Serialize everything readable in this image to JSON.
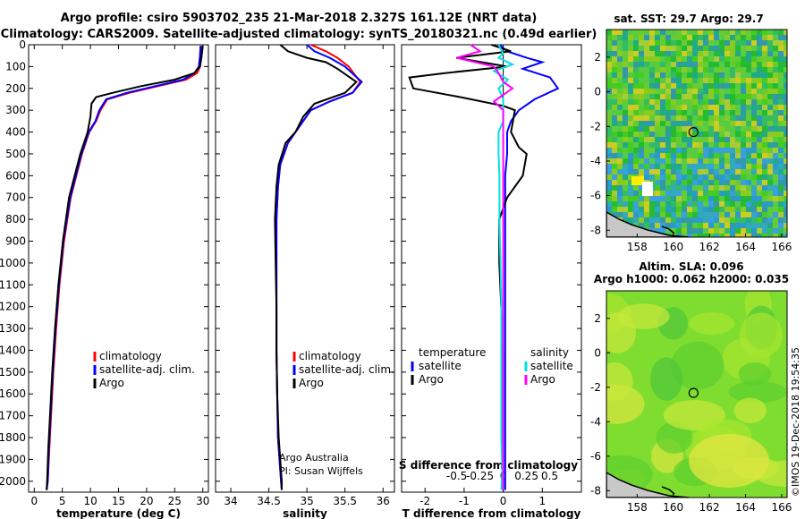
{
  "header": {
    "line1": "Argo profile: csiro 5903702_235 21-Mar-2018 2.327S 161.12E (NRT data)",
    "line2": "Climatology: CARS2009. Satellite-adjusted climatology: synTS_20180321.nc (0.49d earlier)"
  },
  "credit": {
    "org": "Argo Australia",
    "pi": "PI: Susan Wijffels"
  },
  "timestamp": "©IMOS 19-Dec-2018 19:54:35",
  "colors": {
    "climatology": "#ff0000",
    "satellite": "#0000ff",
    "argo": "#000000",
    "sat_salinity": "#00e0e0",
    "argo_salinity_diff": "#ff00ff"
  },
  "chart_data": [
    {
      "id": "temperature",
      "type": "line",
      "xlabel": "temperature (deg C)",
      "ylabel": "",
      "xlim": [
        -1,
        31
      ],
      "ylim": [
        2050,
        0
      ],
      "xticks": [
        0,
        5,
        10,
        15,
        20,
        25,
        30
      ],
      "xtick_labels": [
        "0",
        "5",
        "10",
        "15",
        "20",
        "25",
        "30"
      ],
      "yticks": [
        0,
        100,
        200,
        300,
        400,
        500,
        600,
        700,
        800,
        900,
        1000,
        1100,
        1200,
        1300,
        1400,
        1500,
        1600,
        1700,
        1800,
        1900,
        2000
      ],
      "ytick_labels": [
        "0",
        "100",
        "200",
        "300",
        "400",
        "500",
        "600",
        "700",
        "800",
        "900",
        "1000",
        "1100",
        "1200",
        "1300",
        "1400",
        "1500",
        "1600",
        "1700",
        "1800",
        "1900",
        "2000"
      ],
      "legend": [
        "climatology",
        "satellite-adj. clim.",
        "Argo"
      ],
      "legend_position": "lower-right",
      "series": [
        {
          "name": "climatology",
          "color": "#ff0000",
          "x": [
            29.8,
            29.7,
            29.5,
            29.0,
            27.0,
            22.0,
            17.0,
            13.0,
            11.8,
            11.0,
            9.8,
            8.5,
            7.5,
            6.5,
            5.3,
            4.5,
            3.9,
            3.4,
            3.0,
            2.7,
            2.4,
            2.2
          ],
          "y": [
            5,
            50,
            100,
            130,
            160,
            190,
            220,
            250,
            300,
            350,
            400,
            500,
            600,
            700,
            900,
            1100,
            1300,
            1500,
            1700,
            1850,
            2000,
            2040
          ]
        },
        {
          "name": "satellite-adj. clim.",
          "color": "#0000ff",
          "x": [
            29.6,
            29.5,
            29.3,
            28.5,
            26.5,
            21.5,
            16.5,
            12.8,
            11.6,
            10.9,
            9.7,
            8.4,
            7.4,
            6.4,
            5.2,
            4.4,
            3.8,
            3.3,
            2.9,
            2.6,
            2.4,
            2.2
          ],
          "y": [
            5,
            50,
            100,
            130,
            160,
            190,
            220,
            250,
            300,
            350,
            400,
            500,
            600,
            700,
            900,
            1100,
            1300,
            1500,
            1700,
            1850,
            2000,
            2040
          ]
        },
        {
          "name": "Argo",
          "color": "#000000",
          "x": [
            30.0,
            29.8,
            29.5,
            28.5,
            25.0,
            19.0,
            14.0,
            11.0,
            10.2,
            10.0,
            9.5,
            8.2,
            7.2,
            6.2,
            5.1,
            4.3,
            3.7,
            3.2,
            2.8,
            2.5,
            2.3,
            2.2
          ],
          "y": [
            5,
            50,
            100,
            130,
            160,
            190,
            220,
            240,
            270,
            330,
            400,
            500,
            600,
            700,
            900,
            1100,
            1300,
            1500,
            1700,
            1850,
            2000,
            2040
          ]
        }
      ]
    },
    {
      "id": "salinity",
      "type": "line",
      "xlabel": "salinity",
      "ylabel": "",
      "xlim": [
        33.8,
        36.15
      ],
      "ylim": [
        2050,
        0
      ],
      "xticks": [
        34,
        34.5,
        35,
        35.5,
        36
      ],
      "xtick_labels": [
        "34",
        "34.5",
        "35",
        "35.5",
        "36"
      ],
      "legend": [
        "climatology",
        "satellite-adj. clim.",
        "Argo"
      ],
      "legend_position": "lower-right",
      "series": [
        {
          "name": "climatology",
          "color": "#ff0000",
          "x": [
            35.05,
            35.25,
            35.4,
            35.55,
            35.7,
            35.6,
            35.3,
            35.05,
            34.95,
            34.85,
            34.75,
            34.65,
            34.62,
            34.6,
            34.6,
            34.6,
            34.6,
            34.61,
            34.62,
            34.64,
            34.66,
            34.67
          ],
          "y": [
            0,
            30,
            60,
            100,
            170,
            220,
            260,
            300,
            350,
            400,
            450,
            550,
            650,
            800,
            1000,
            1200,
            1400,
            1600,
            1800,
            1900,
            2000,
            2040
          ]
        },
        {
          "name": "satellite-adj. clim.",
          "color": "#0000ff",
          "x": [
            35.0,
            35.1,
            35.3,
            35.5,
            35.72,
            35.6,
            35.3,
            35.05,
            34.95,
            34.85,
            34.75,
            34.65,
            34.62,
            34.6,
            34.6,
            34.6,
            34.6,
            34.61,
            34.62,
            34.64,
            34.66,
            34.67
          ],
          "y": [
            0,
            30,
            60,
            100,
            170,
            220,
            260,
            300,
            350,
            400,
            450,
            550,
            650,
            800,
            1000,
            1200,
            1400,
            1600,
            1800,
            1900,
            2000,
            2040
          ]
        },
        {
          "name": "Argo",
          "color": "#000000",
          "x": [
            34.65,
            34.75,
            35.0,
            35.25,
            35.4,
            35.65,
            35.5,
            35.1,
            34.95,
            34.85,
            34.72,
            34.63,
            34.6,
            34.58,
            34.59,
            34.6,
            34.6,
            34.61,
            34.63,
            34.65,
            34.67,
            34.67
          ],
          "y": [
            0,
            30,
            60,
            80,
            110,
            170,
            220,
            270,
            330,
            400,
            450,
            550,
            650,
            800,
            1000,
            1200,
            1400,
            1600,
            1800,
            1900,
            2000,
            2040
          ]
        }
      ]
    },
    {
      "id": "differences",
      "type": "line",
      "xlabel": "T difference from climatology",
      "xlabel2": "S difference from climatology",
      "xlim": [
        -2.6,
        2.0
      ],
      "ylim": [
        2050,
        0
      ],
      "xticks": [
        -2,
        -1,
        0,
        1
      ],
      "xtick_labels": [
        "-2",
        "-1",
        "0",
        "1"
      ],
      "xticks2": [
        -0.5,
        -0.25,
        0,
        0.25,
        0.5
      ],
      "xtick2_labels": [
        "-0.5",
        "-0.25",
        "0",
        "0.25",
        "0.5"
      ],
      "legend_left": [
        "temperature",
        "satellite",
        "Argo"
      ],
      "legend_right": [
        "salinity",
        "satellite",
        "Argo"
      ],
      "series": [
        {
          "name": "temperature satellite",
          "color": "#0000ff",
          "x": [
            -0.1,
            0.1,
            0.6,
            1.0,
            0.5,
            1.2,
            1.4,
            0.8,
            0.4,
            0.2,
            0.1,
            0.1,
            0.05,
            0.05,
            0.05,
            0.05,
            0.05,
            0.05,
            0.05,
            0.05,
            0.05
          ],
          "y": [
            0,
            30,
            60,
            80,
            110,
            150,
            200,
            250,
            300,
            350,
            400,
            500,
            600,
            800,
            1000,
            1200,
            1400,
            1600,
            1800,
            1950,
            2040
          ]
        },
        {
          "name": "temperature Argo",
          "color": "#000000",
          "x": [
            -0.3,
            0.2,
            -1.2,
            0.1,
            -1.5,
            -2.4,
            -2.3,
            -1.1,
            0.0,
            0.3,
            0.2,
            0.4,
            0.6,
            0.5,
            0.1,
            -0.1,
            -0.1,
            -0.05,
            0.0,
            0.0,
            0.0
          ],
          "y": [
            0,
            30,
            60,
            100,
            130,
            150,
            200,
            240,
            280,
            300,
            400,
            470,
            500,
            600,
            700,
            800,
            1000,
            1200,
            1400,
            1800,
            2040
          ]
        },
        {
          "name": "salinity satellite",
          "color": "#00e0e0",
          "x": [
            -0.05,
            0.0,
            -0.05,
            0.1,
            -0.1,
            0.05,
            -0.05,
            0.0,
            0.0,
            0.0,
            -0.05,
            -0.05,
            -0.04,
            -0.04,
            -0.03,
            -0.02,
            -0.02,
            -0.02,
            -0.02,
            -0.01,
            -0.02
          ],
          "y": [
            0,
            40,
            60,
            90,
            120,
            160,
            200,
            250,
            300,
            350,
            400,
            500,
            600,
            800,
            1000,
            1200,
            1400,
            1600,
            1800,
            1950,
            2040
          ]
        },
        {
          "name": "salinity Argo",
          "color": "#ff00ff",
          "x": [
            -0.35,
            -0.25,
            -0.5,
            -0.1,
            -0.05,
            0.0,
            0.1,
            -0.1,
            0.0,
            0.0,
            0.0,
            0.0,
            0.0,
            0.0,
            0.0,
            0.0,
            0.0,
            0.0,
            0.0,
            0.0,
            0.0
          ],
          "y": [
            0,
            30,
            60,
            100,
            130,
            170,
            200,
            260,
            300,
            350,
            400,
            500,
            600,
            800,
            1000,
            1200,
            1400,
            1600,
            1800,
            1950,
            2040
          ]
        }
      ]
    },
    {
      "id": "sst-map",
      "type": "heatmap",
      "title": "sat. SST: 29.7 Argo: 29.7",
      "xlim": [
        156.3,
        166.3
      ],
      "ylim": [
        -8.4,
        3.6
      ],
      "xticks": [
        158,
        160,
        162,
        164,
        166
      ],
      "xtick_labels": [
        "158",
        "160",
        "162",
        "164",
        "166"
      ],
      "yticks": [
        2,
        0,
        -2,
        -4,
        -6,
        -8
      ],
      "ytick_labels": [
        "2",
        "0",
        "-2",
        "-4",
        "-6",
        "-8"
      ],
      "marker": {
        "lon": 161.12,
        "lat": -2.327
      }
    },
    {
      "id": "sla-map",
      "type": "heatmap",
      "title": "Altim. SLA: 0.096",
      "subtitle": "Argo h1000: 0.062 h2000: 0.035",
      "xlim": [
        156.3,
        166.3
      ],
      "ylim": [
        -8.4,
        3.6
      ],
      "xticks": [
        158,
        160,
        162,
        164,
        166
      ],
      "xtick_labels": [
        "158",
        "160",
        "162",
        "164",
        "166"
      ],
      "yticks": [
        2,
        0,
        -2,
        -4,
        -6,
        -8
      ],
      "ytick_labels": [
        "2",
        "0",
        "-2",
        "-4",
        "-6",
        "-8"
      ],
      "marker": {
        "lon": 161.12,
        "lat": -2.327
      }
    }
  ]
}
